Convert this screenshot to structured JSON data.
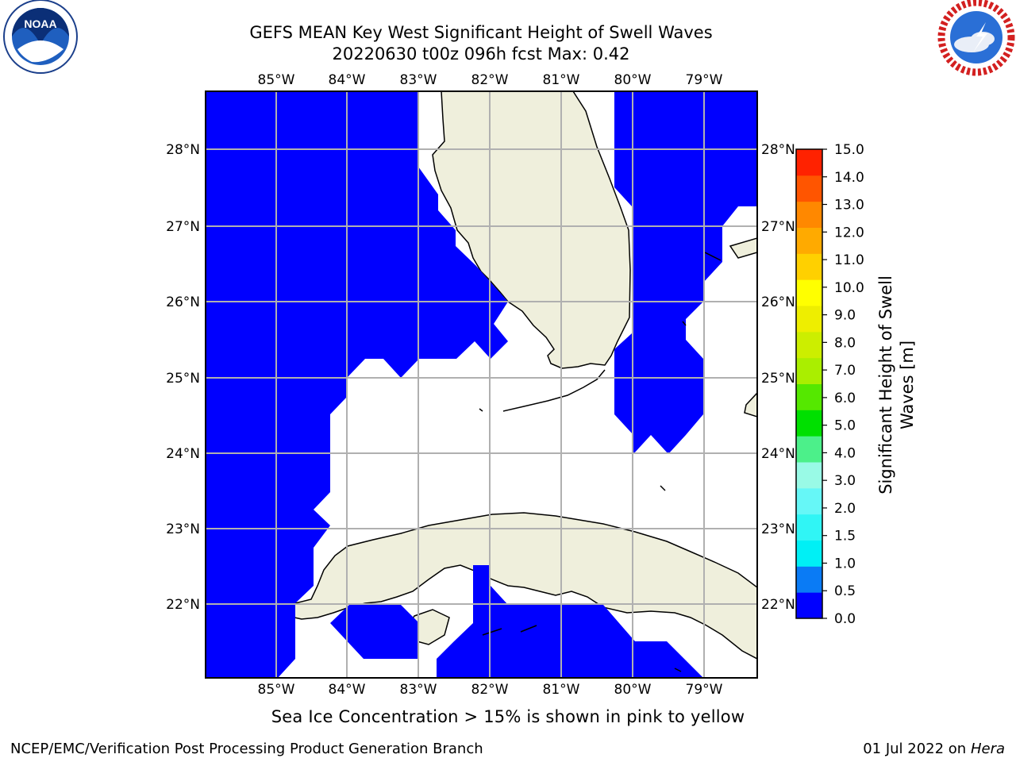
{
  "header": {
    "title_line1": "GEFS MEAN Key West Significant Height of Swell Waves",
    "title_line2": "20220630 t00z 096h fcst   Max: 0.42"
  },
  "logos": {
    "left": {
      "icon": "noaa-logo",
      "text": "NOAA"
    },
    "right": {
      "icon": "national-weather-service-logo",
      "text": "NATIONAL WEATHER SERVICE"
    }
  },
  "map": {
    "lon_labels": [
      "85°W",
      "84°W",
      "83°W",
      "82°W",
      "81°W",
      "80°W",
      "79°W"
    ],
    "lat_labels": [
      "28°N",
      "27°N",
      "26°N",
      "25°N",
      "24°N",
      "23°N",
      "22°N"
    ],
    "colors": {
      "ocean_swell": "#0000ff",
      "land": "#efefdc",
      "grid": "#b0b0b0",
      "coast": "#000000"
    }
  },
  "colorbar": {
    "label": "Significant Height of Swell Waves [m]",
    "label_line1": "Significant Height of Swell",
    "label_line2": "Waves [m]",
    "ticks": [
      "0.0",
      "0.5",
      "1.0",
      "1.5",
      "2.0",
      "3.0",
      "4.0",
      "5.0",
      "6.0",
      "7.0",
      "8.0",
      "9.0",
      "10.0",
      "11.0",
      "12.0",
      "13.0",
      "14.0",
      "15.0"
    ],
    "colors": [
      "#0000ff",
      "#0a7bf5",
      "#00f0f5",
      "#30f5f5",
      "#66f7f7",
      "#99fae6",
      "#4cf08a",
      "#00e000",
      "#55e800",
      "#aaee00",
      "#ccee00",
      "#eeee00",
      "#ffff00",
      "#ffd000",
      "#ffaa00",
      "#ff8800",
      "#ff5500",
      "#ff2200",
      "#ff0000"
    ]
  },
  "footnote": "Sea Ice Concentration > 15% is shown in pink to yellow",
  "footer": {
    "left": "NCEP/EMC/Verification Post Processing Product Generation Branch",
    "right_date": "01 Jul 2022 on",
    "right_host": "Hera"
  }
}
